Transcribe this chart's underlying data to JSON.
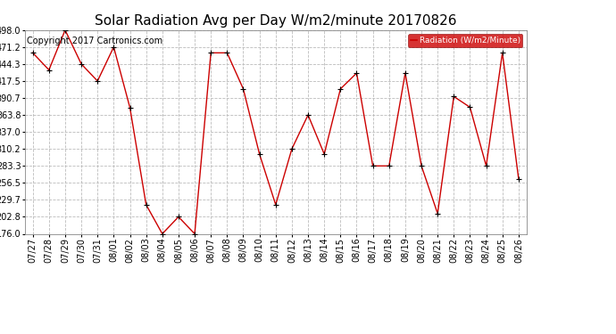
{
  "title": "Solar Radiation Avg per Day W/m2/minute 20170826",
  "copyright_text": "Copyright 2017 Cartronics.com",
  "legend_label": "Radiation (W/m2/Minute)",
  "dates": [
    "07/27",
    "07/28",
    "07/29",
    "07/30",
    "07/31",
    "08/01",
    "08/02",
    "08/03",
    "08/04",
    "08/05",
    "08/06",
    "08/07",
    "08/08",
    "08/09",
    "08/10",
    "08/11",
    "08/12",
    "08/13",
    "08/14",
    "08/15",
    "08/16",
    "08/17",
    "08/18",
    "08/19",
    "08/20",
    "08/21",
    "08/22",
    "08/23",
    "08/24",
    "08/25",
    "08/26"
  ],
  "values": [
    462.0,
    435.0,
    498.0,
    444.3,
    417.5,
    471.2,
    375.5,
    222.0,
    176.0,
    202.8,
    176.0,
    462.0,
    462.0,
    405.0,
    302.0,
    222.0,
    310.2,
    363.8,
    302.0,
    405.0,
    430.0,
    283.3,
    283.3,
    430.0,
    283.3,
    208.0,
    393.0,
    376.0,
    283.3,
    462.0,
    263.0
  ],
  "line_color": "#cc0000",
  "marker_color": "#000000",
  "background_color": "#ffffff",
  "grid_color": "#bbbbbb",
  "ylim": [
    176.0,
    498.0
  ],
  "yticks": [
    176.0,
    202.8,
    229.7,
    256.5,
    283.3,
    310.2,
    337.0,
    363.8,
    390.7,
    417.5,
    444.3,
    471.2,
    498.0
  ],
  "legend_bg": "#cc0000",
  "legend_text_color": "#ffffff",
  "title_fontsize": 11,
  "tick_fontsize": 7,
  "copyright_fontsize": 7
}
